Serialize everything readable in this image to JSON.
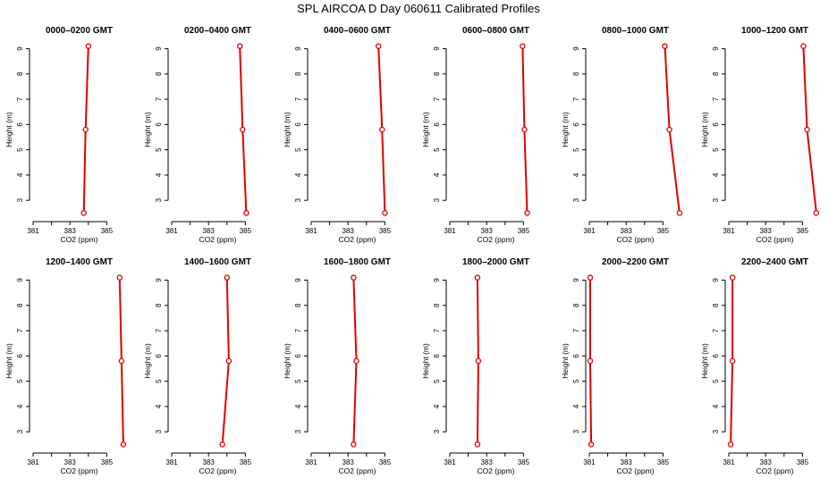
{
  "figure": {
    "title": "SPL AIRCOA D  Day 060611  Calibrated Profiles"
  },
  "axes_common": {
    "xlabel": "CO2 (ppm)",
    "ylabel": "Height (m)",
    "x_ticks": [
      381,
      383,
      385
    ],
    "y_ticks": [
      3,
      4,
      5,
      6,
      7,
      8,
      9
    ],
    "xlim": [
      381,
      386
    ],
    "ylim": [
      2.3,
      9.3
    ]
  },
  "colors": {
    "series": "#e00000",
    "axis": "#000000"
  },
  "chart_data": [
    {
      "type": "line",
      "title": "0000–0200 GMT",
      "heights": [
        2.5,
        5.8,
        9.1
      ],
      "values": [
        383.75,
        383.85,
        384.0
      ]
    },
    {
      "type": "line",
      "title": "0200–0400 GMT",
      "heights": [
        2.5,
        5.8,
        9.1
      ],
      "values": [
        385.05,
        384.85,
        384.7
      ]
    },
    {
      "type": "line",
      "title": "0400–0600 GMT",
      "heights": [
        2.5,
        5.8,
        9.1
      ],
      "values": [
        385.0,
        384.85,
        384.65
      ]
    },
    {
      "type": "line",
      "title": "0600–0800 GMT",
      "heights": [
        2.5,
        5.8,
        9.1
      ],
      "values": [
        385.2,
        385.05,
        384.95
      ]
    },
    {
      "type": "line",
      "title": "0800–1000 GMT",
      "heights": [
        2.5,
        5.8,
        9.1
      ],
      "values": [
        385.9,
        385.35,
        385.1
      ]
    },
    {
      "type": "line",
      "title": "1000–1200 GMT",
      "heights": [
        2.5,
        5.8,
        9.1
      ],
      "values": [
        385.75,
        385.25,
        385.05
      ]
    },
    {
      "type": "line",
      "title": "1200–1400 GMT",
      "heights": [
        2.5,
        5.8,
        9.1
      ],
      "values": [
        385.9,
        385.8,
        385.7
      ]
    },
    {
      "type": "line",
      "title": "1400–1600 GMT",
      "heights": [
        2.5,
        5.8,
        9.1
      ],
      "values": [
        383.75,
        384.1,
        384.0
      ]
    },
    {
      "type": "line",
      "title": "1600–1800 GMT",
      "heights": [
        2.5,
        5.8,
        9.1
      ],
      "values": [
        383.3,
        383.45,
        383.3
      ]
    },
    {
      "type": "line",
      "title": "1800–2000 GMT",
      "heights": [
        2.5,
        5.8,
        9.1
      ],
      "values": [
        382.5,
        382.55,
        382.5
      ]
    },
    {
      "type": "line",
      "title": "2000–2200 GMT",
      "heights": [
        2.5,
        5.8,
        9.1
      ],
      "values": [
        381.1,
        381.05,
        381.05
      ]
    },
    {
      "type": "line",
      "title": "2200–2400 GMT",
      "heights": [
        2.5,
        5.8,
        9.1
      ],
      "values": [
        381.1,
        381.2,
        381.2
      ]
    }
  ]
}
